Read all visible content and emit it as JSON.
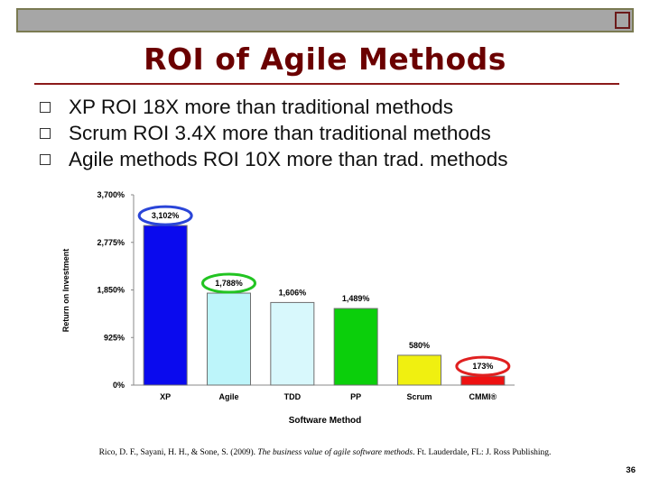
{
  "slide": {
    "title": "ROI of Agile Methods",
    "bullets": [
      "XP ROI 18X more than traditional methods",
      "Scrum ROI 3.4X more than traditional methods",
      "Agile methods ROI 10X more than trad. methods"
    ],
    "citation_authors": "Rico, D. F., Sayani, H. H., & Sone, S. (2009). ",
    "citation_title": "The business value of agile software methods",
    "citation_rest": ". Ft. Lauderdale, FL: J. Ross Publishing.",
    "page_number": "36"
  },
  "chart_data": {
    "type": "bar",
    "categories": [
      "XP",
      "Agile",
      "TDD",
      "PP",
      "Scrum",
      "CMMI®"
    ],
    "values": [
      3102,
      1788,
      1606,
      1489,
      580,
      173
    ],
    "value_labels": [
      "3,102%",
      "1,788%",
      "1,606%",
      "1,489%",
      "580%",
      "173%"
    ],
    "bar_colors": [
      "#0a0aee",
      "#bdf5fa",
      "#d8f8fc",
      "#0bcf0b",
      "#f0f010",
      "#ee1111"
    ],
    "bar_stroke": "#6f6f6f",
    "highlighted": [
      {
        "index": 0,
        "color": "#2a45d8"
      },
      {
        "index": 1,
        "color": "#22c422"
      },
      {
        "index": 5,
        "color": "#e02020"
      }
    ],
    "ylim": [
      0,
      3700
    ],
    "yticks": [
      0,
      925,
      1850,
      2775,
      3700
    ],
    "ytick_labels": [
      "0%",
      "925%",
      "1,850%",
      "2,775%",
      "3,700%"
    ],
    "xlabel": "Software Method",
    "ylabel": "Return on Investment",
    "grid": false,
    "legend": "none"
  }
}
